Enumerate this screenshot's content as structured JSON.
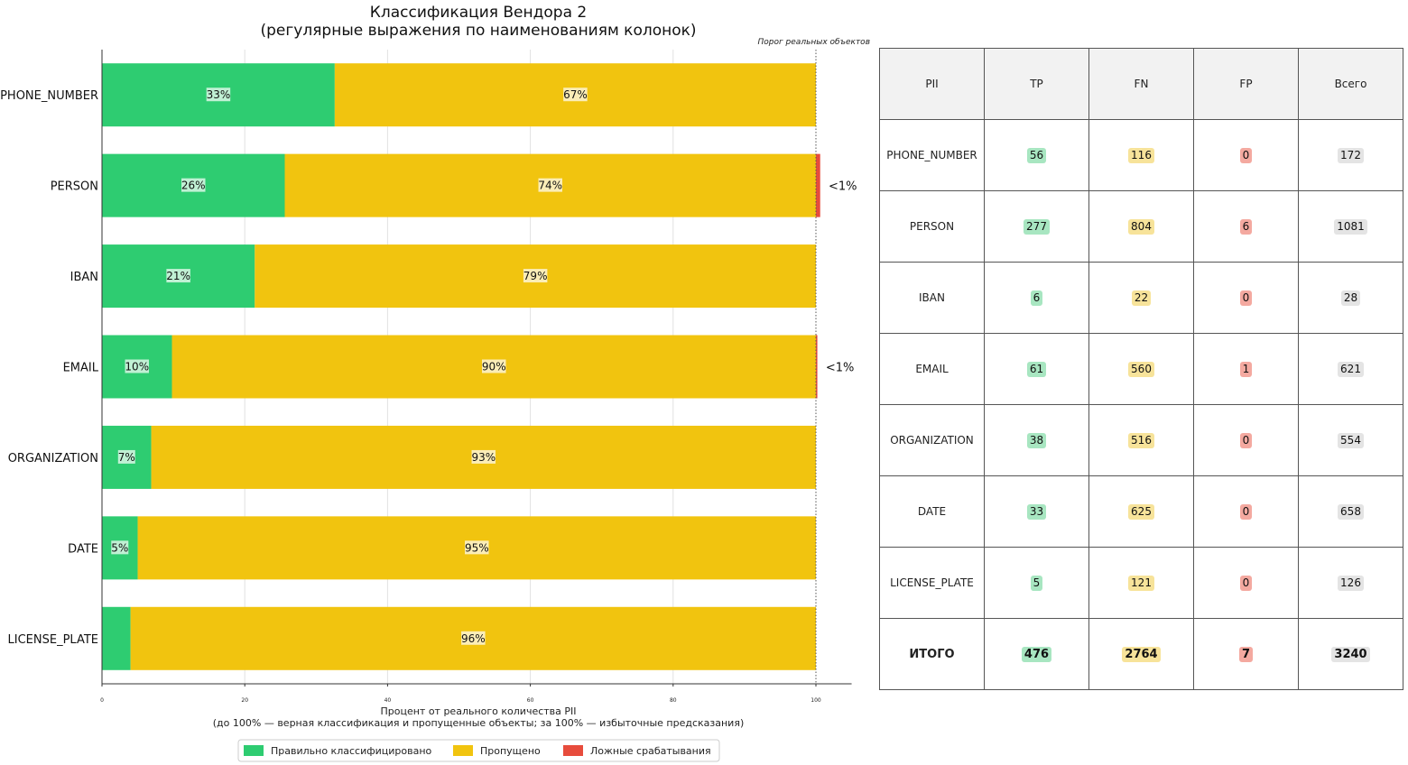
{
  "chart_data": {
    "type": "bar",
    "orientation": "horizontal-stacked",
    "title": "Классификация Вендора 2",
    "subtitle": "(регулярные выражения по наименованиям колонок)",
    "categories": [
      "PHONE_NUMBER",
      "PERSON",
      "IBAN",
      "EMAIL",
      "ORGANIZATION",
      "DATE",
      "LICENSE_PLATE"
    ],
    "series": [
      {
        "name": "Правильно классифицировано",
        "color": "#2ecc71",
        "values": [
          32.6,
          25.6,
          21.4,
          9.8,
          6.9,
          5.0,
          4.0
        ],
        "labels": [
          "33%",
          "26%",
          "21%",
          "10%",
          "7%",
          "5%",
          ""
        ]
      },
      {
        "name": "Пропущено",
        "color": "#f1c40f",
        "values": [
          67.4,
          74.4,
          78.6,
          90.2,
          93.1,
          95.0,
          96.0
        ],
        "labels": [
          "67%",
          "74%",
          "79%",
          "90%",
          "93%",
          "95%",
          "96%"
        ]
      },
      {
        "name": "Ложные срабатывания",
        "color": "#e74c3c",
        "values": [
          0,
          0.6,
          0,
          0.2,
          0,
          0,
          0
        ],
        "labels": [
          "",
          "<1%",
          "",
          "<1%",
          "",
          "",
          ""
        ]
      }
    ],
    "xlim": [
      0,
      105
    ],
    "xticks": [
      0,
      20,
      40,
      60,
      80,
      100
    ],
    "xlabel": "Процент от реального количества PII",
    "xlabel_sub": "(до 100% — верная классификация и пропущенные объекты; за 100% — избыточные предсказания)",
    "threshold": 100,
    "threshold_label": "Порог реальных объектов",
    "legend_position": "bottom-center",
    "grid": "vertical"
  },
  "table": {
    "headers": [
      "PII",
      "TP",
      "FN",
      "FP",
      "Всего"
    ],
    "rows": [
      [
        "PHONE_NUMBER",
        "56",
        "116",
        "0",
        "172"
      ],
      [
        "PERSON",
        "277",
        "804",
        "6",
        "1081"
      ],
      [
        "IBAN",
        "6",
        "22",
        "0",
        "28"
      ],
      [
        "EMAIL",
        "61",
        "560",
        "1",
        "621"
      ],
      [
        "ORGANIZATION",
        "38",
        "516",
        "0",
        "554"
      ],
      [
        "DATE",
        "33",
        "625",
        "0",
        "658"
      ],
      [
        "LICENSE_PLATE",
        "5",
        "121",
        "0",
        "126"
      ]
    ],
    "total_row": [
      "ИТОГО",
      "476",
      "2764",
      "7",
      "3240"
    ]
  }
}
